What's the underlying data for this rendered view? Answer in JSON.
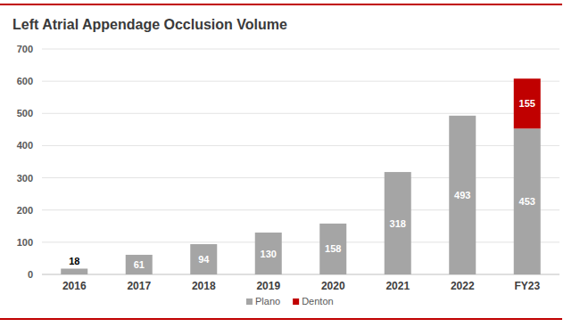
{
  "chart_data": {
    "type": "bar",
    "title": "Left Atrial Appendage Occlusion Volume",
    "categories": [
      "2016",
      "2017",
      "2018",
      "2019",
      "2020",
      "2021",
      "2022",
      "FY23"
    ],
    "series": [
      {
        "name": "Plano",
        "color": "#a5a5a5",
        "values": [
          18,
          61,
          94,
          130,
          158,
          318,
          493,
          453
        ]
      },
      {
        "name": "Denton",
        "color": "#c00000",
        "values": [
          null,
          null,
          null,
          null,
          null,
          null,
          null,
          155
        ]
      }
    ],
    "ylim": [
      0,
      700
    ],
    "yticks": [
      0,
      100,
      200,
      300,
      400,
      500,
      600,
      700
    ],
    "stacked": true,
    "grid": true,
    "data_labels": true,
    "legend": "bottom"
  }
}
